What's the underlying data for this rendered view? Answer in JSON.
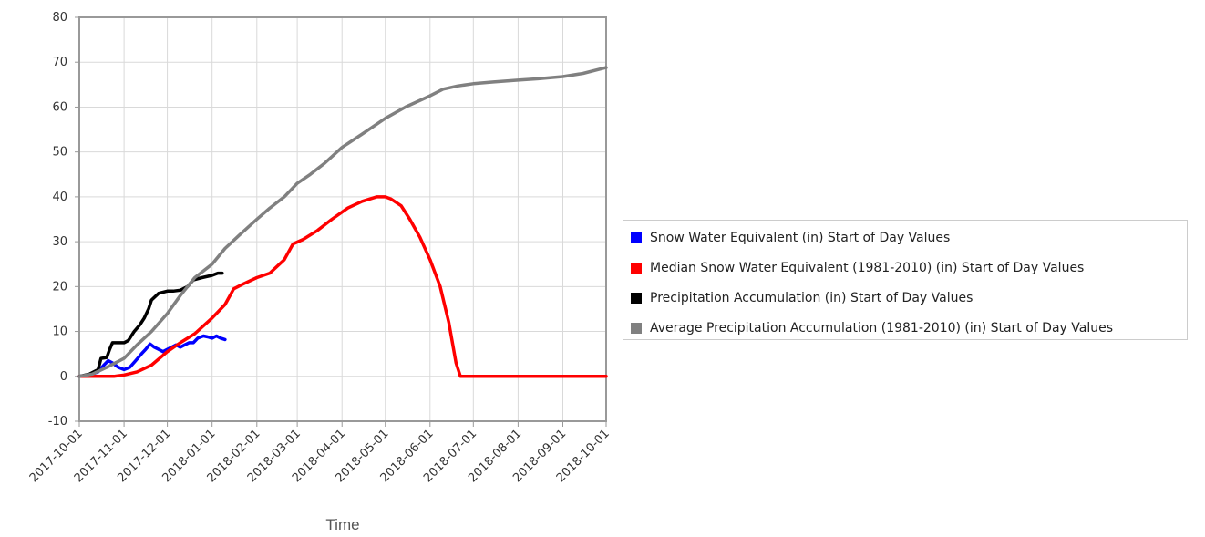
{
  "chart_data": {
    "type": "line",
    "title": "",
    "xlabel": "Time",
    "ylabel": "",
    "ylim": [
      -10,
      80
    ],
    "yticks": [
      -10,
      0,
      10,
      20,
      30,
      40,
      50,
      60,
      70,
      80
    ],
    "xlim": [
      "2017-10-01",
      "2018-10-01"
    ],
    "xticks": [
      "2017-10-01",
      "2017-11-01",
      "2017-12-01",
      "2018-01-01",
      "2018-02-01",
      "2018-03-01",
      "2018-04-01",
      "2018-05-01",
      "2018-06-01",
      "2018-07-01",
      "2018-08-01",
      "2018-09-01",
      "2018-10-01"
    ],
    "grid": true,
    "legend_position": "right",
    "series": [
      {
        "name": "Snow Water Equivalent (in) Start of Day Values",
        "color": "#0000ff",
        "points": [
          [
            "2017-10-01",
            0
          ],
          [
            "2017-10-08",
            0.3
          ],
          [
            "2017-10-14",
            1
          ],
          [
            "2017-10-18",
            2.5
          ],
          [
            "2017-10-21",
            3.5
          ],
          [
            "2017-10-24",
            3
          ],
          [
            "2017-10-28",
            2
          ],
          [
            "2017-11-01",
            1.5
          ],
          [
            "2017-11-05",
            2
          ],
          [
            "2017-11-09",
            3.5
          ],
          [
            "2017-11-13",
            5
          ],
          [
            "2017-11-16",
            6
          ],
          [
            "2017-11-19",
            7.2
          ],
          [
            "2017-11-22",
            6.5
          ],
          [
            "2017-11-25",
            6
          ],
          [
            "2017-11-28",
            5.5
          ],
          [
            "2017-12-01",
            6
          ],
          [
            "2017-12-04",
            6.5
          ],
          [
            "2017-12-07",
            7
          ],
          [
            "2017-12-10",
            6.5
          ],
          [
            "2017-12-13",
            7
          ],
          [
            "2017-12-16",
            7.5
          ],
          [
            "2017-12-19",
            7.5
          ],
          [
            "2017-12-22",
            8.5
          ],
          [
            "2017-12-26",
            9
          ],
          [
            "2017-12-29",
            8.8
          ],
          [
            "2018-01-01",
            8.5
          ],
          [
            "2018-01-04",
            9
          ],
          [
            "2018-01-07",
            8.5
          ],
          [
            "2018-01-10",
            8.2
          ]
        ]
      },
      {
        "name": "Median Snow Water Equivalent (1981-2010) (in) Start of Day Values",
        "color": "#ff0000",
        "points": [
          [
            "2017-10-01",
            0
          ],
          [
            "2017-10-10",
            0
          ],
          [
            "2017-10-25",
            0
          ],
          [
            "2017-11-01",
            0.3
          ],
          [
            "2017-11-10",
            1
          ],
          [
            "2017-11-20",
            2.5
          ],
          [
            "2017-12-01",
            5.5
          ],
          [
            "2017-12-10",
            7.5
          ],
          [
            "2017-12-20",
            9.5
          ],
          [
            "2018-01-01",
            13
          ],
          [
            "2018-01-10",
            16
          ],
          [
            "2018-01-16",
            19.5
          ],
          [
            "2018-01-22",
            20.5
          ],
          [
            "2018-02-01",
            22
          ],
          [
            "2018-02-10",
            23
          ],
          [
            "2018-02-20",
            26
          ],
          [
            "2018-02-26",
            29.5
          ],
          [
            "2018-03-05",
            30.5
          ],
          [
            "2018-03-15",
            32.5
          ],
          [
            "2018-03-25",
            35
          ],
          [
            "2018-04-05",
            37.5
          ],
          [
            "2018-04-15",
            39
          ],
          [
            "2018-04-25",
            40
          ],
          [
            "2018-05-01",
            40
          ],
          [
            "2018-05-05",
            39.5
          ],
          [
            "2018-05-12",
            38
          ],
          [
            "2018-05-18",
            35
          ],
          [
            "2018-05-25",
            31
          ],
          [
            "2018-06-01",
            26
          ],
          [
            "2018-06-08",
            20
          ],
          [
            "2018-06-14",
            12
          ],
          [
            "2018-06-19",
            3
          ],
          [
            "2018-06-22",
            0
          ],
          [
            "2018-06-30",
            0
          ],
          [
            "2018-10-01",
            0
          ]
        ]
      },
      {
        "name": "Precipitation Accumulation (in) Start of Day Values",
        "color": "#000000",
        "points": [
          [
            "2017-10-01",
            0
          ],
          [
            "2017-10-08",
            0.5
          ],
          [
            "2017-10-14",
            1.5
          ],
          [
            "2017-10-16",
            4
          ],
          [
            "2017-10-20",
            4.2
          ],
          [
            "2017-10-22",
            6
          ],
          [
            "2017-10-24",
            7.5
          ],
          [
            "2017-11-01",
            7.5
          ],
          [
            "2017-11-04",
            8
          ],
          [
            "2017-11-08",
            10
          ],
          [
            "2017-11-12",
            11.5
          ],
          [
            "2017-11-15",
            13
          ],
          [
            "2017-11-18",
            15
          ],
          [
            "2017-11-20",
            17
          ],
          [
            "2017-11-25",
            18.5
          ],
          [
            "2017-12-01",
            19
          ],
          [
            "2017-12-05",
            19
          ],
          [
            "2017-12-10",
            19.2
          ],
          [
            "2017-12-15",
            20
          ],
          [
            "2017-12-19",
            21.5
          ],
          [
            "2017-12-25",
            22
          ],
          [
            "2018-01-01",
            22.5
          ],
          [
            "2018-01-05",
            23
          ],
          [
            "2018-01-08",
            23
          ]
        ]
      },
      {
        "name": "Average Precipitation Accumulation (1981-2010) (in) Start of Day Values",
        "color": "#808080",
        "points": [
          [
            "2017-10-01",
            0
          ],
          [
            "2017-10-10",
            0.5
          ],
          [
            "2017-10-20",
            2
          ],
          [
            "2017-11-01",
            4
          ],
          [
            "2017-11-10",
            7
          ],
          [
            "2017-11-20",
            10
          ],
          [
            "2017-12-01",
            14
          ],
          [
            "2017-12-10",
            18
          ],
          [
            "2017-12-20",
            22
          ],
          [
            "2018-01-01",
            25
          ],
          [
            "2018-01-10",
            28.5
          ],
          [
            "2018-01-20",
            31.5
          ],
          [
            "2018-02-01",
            35
          ],
          [
            "2018-02-10",
            37.5
          ],
          [
            "2018-02-20",
            40
          ],
          [
            "2018-03-01",
            43
          ],
          [
            "2018-03-10",
            45
          ],
          [
            "2018-03-20",
            47.5
          ],
          [
            "2018-04-01",
            51
          ],
          [
            "2018-04-15",
            54
          ],
          [
            "2018-05-01",
            57.5
          ],
          [
            "2018-05-15",
            60
          ],
          [
            "2018-06-01",
            62.5
          ],
          [
            "2018-06-10",
            64
          ],
          [
            "2018-06-20",
            64.7
          ],
          [
            "2018-07-01",
            65.2
          ],
          [
            "2018-07-15",
            65.6
          ],
          [
            "2018-08-01",
            66
          ],
          [
            "2018-08-15",
            66.3
          ],
          [
            "2018-09-01",
            66.8
          ],
          [
            "2018-09-15",
            67.5
          ],
          [
            "2018-10-01",
            68.8
          ]
        ]
      }
    ]
  }
}
